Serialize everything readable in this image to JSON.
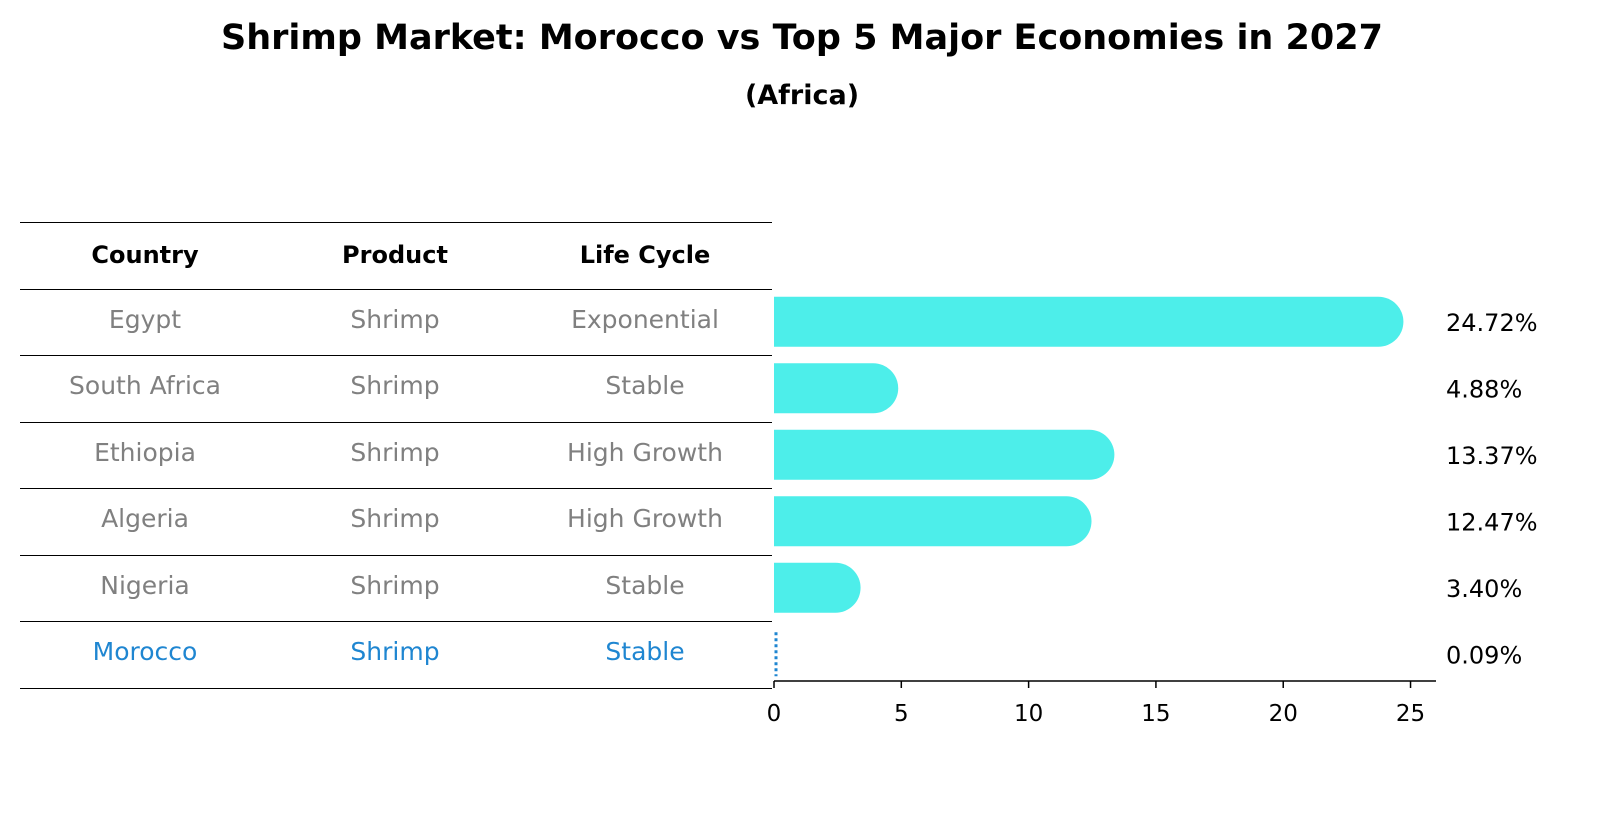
{
  "title": "Shrimp Market: Morocco vs Top 5 Major Economies in 2027",
  "subtitle": "(Africa)",
  "table": {
    "headers": [
      "Country",
      "Product",
      "Life Cycle"
    ],
    "rows": [
      {
        "country": "Egypt",
        "product": "Shrimp",
        "life_cycle": "Exponential",
        "highlight": false
      },
      {
        "country": "South Africa",
        "product": "Shrimp",
        "life_cycle": "Stable",
        "highlight": false
      },
      {
        "country": "Ethiopia",
        "product": "Shrimp",
        "life_cycle": "High Growth",
        "highlight": false
      },
      {
        "country": "Algeria",
        "product": "Shrimp",
        "life_cycle": "High Growth",
        "highlight": false
      },
      {
        "country": "Nigeria",
        "product": "Shrimp",
        "life_cycle": "Stable",
        "highlight": false
      },
      {
        "country": "Morocco",
        "product": "Shrimp",
        "life_cycle": "Stable",
        "highlight": true
      }
    ]
  },
  "chart_data": {
    "type": "bar",
    "orientation": "horizontal",
    "categories": [
      "Egypt",
      "South Africa",
      "Ethiopia",
      "Algeria",
      "Nigeria",
      "Morocco"
    ],
    "values": [
      24.72,
      4.88,
      13.37,
      12.47,
      3.4,
      0.09
    ],
    "value_labels": [
      "24.72%",
      "4.88%",
      "13.37%",
      "12.47%",
      "3.40%",
      "0.09%"
    ],
    "xlim": [
      0,
      26
    ],
    "xticks": [
      0,
      5,
      10,
      15,
      20,
      25
    ],
    "bar_color": "#4deeea",
    "highlight_color": "#1f86d1",
    "grid": false
  }
}
